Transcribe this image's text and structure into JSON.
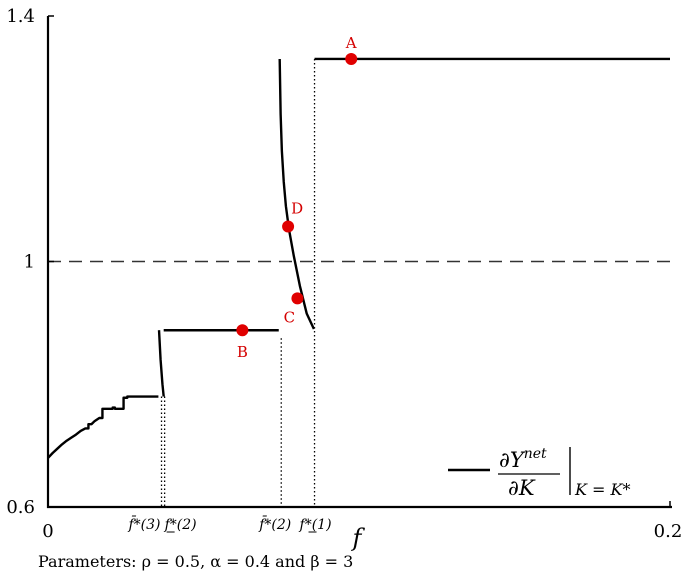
{
  "chart_data": {
    "type": "line",
    "title": "",
    "xlabel": "f",
    "ylabel": "",
    "xlim": [
      0,
      0.2
    ],
    "ylim": [
      0.6,
      1.4
    ],
    "x_ticks": [
      {
        "value": 0,
        "label": "0"
      },
      {
        "value": 0.2,
        "label": "0.2"
      }
    ],
    "y_ticks": [
      {
        "value": 0.6,
        "label": "0.6"
      },
      {
        "value": 1.0,
        "label": "1"
      },
      {
        "value": 1.4,
        "label": "1.4"
      }
    ],
    "x_markers": [
      {
        "value": 0.0365,
        "label": "f̄*(3)",
        "line_top": 0.78
      },
      {
        "value": 0.0375,
        "label": "f*(2)",
        "underline": true,
        "line_top": 0.78
      },
      {
        "value": 0.075,
        "label": "f̄*(2)",
        "line_top": 0.875
      },
      {
        "value": 0.0857,
        "label": "f*(1)",
        "underline": true,
        "line_top": 1.33
      }
    ],
    "reference_line": {
      "y": 1.0,
      "style": "dashed"
    },
    "series": [
      {
        "name": "",
        "segments": [
          [
            [
              0,
              0.68
            ],
            [
              0.0015,
              0.688
            ],
            [
              0.003,
              0.695
            ],
            [
              0.0045,
              0.702
            ],
            [
              0.006,
              0.708
            ],
            [
              0.0075,
              0.713
            ],
            [
              0.009,
              0.718
            ],
            [
              0.0105,
              0.724
            ],
            [
              0.012,
              0.728
            ],
            [
              0.013,
              0.728
            ],
            [
              0.013,
              0.735
            ],
            [
              0.014,
              0.735
            ],
            [
              0.015,
              0.74
            ],
            [
              0.0165,
              0.745
            ],
            [
              0.0175,
              0.745
            ],
            [
              0.0175,
              0.76
            ],
            [
              0.0208,
              0.76
            ],
            [
              0.0208,
              0.762
            ],
            [
              0.0215,
              0.762
            ],
            [
              0.0215,
              0.76
            ],
            [
              0.0243,
              0.76
            ],
            [
              0.0243,
              0.778
            ],
            [
              0.0255,
              0.778
            ],
            [
              0.0255,
              0.78
            ],
            [
              0.0355,
              0.78
            ]
          ],
          [
            [
              0.0357,
              0.888
            ],
            [
              0.0362,
              0.84
            ],
            [
              0.0368,
              0.8
            ],
            [
              0.0372,
              0.78
            ]
          ],
          [
            [
              0.0372,
              0.888
            ],
            [
              0.0742,
              0.888
            ]
          ],
          [
            [
              0.0745,
              1.33
            ],
            [
              0.0748,
              1.24
            ],
            [
              0.0752,
              1.18
            ],
            [
              0.0758,
              1.13
            ],
            [
              0.0765,
              1.09
            ],
            [
              0.0775,
              1.052
            ],
            [
              0.079,
              1.01
            ],
            [
              0.081,
              0.96
            ],
            [
              0.0832,
              0.915
            ],
            [
              0.0855,
              0.89
            ]
          ],
          [
            [
              0.0857,
              1.33
            ],
            [
              0.2,
              1.33
            ]
          ]
        ]
      }
    ],
    "points": [
      {
        "label": "A",
        "x": 0.0975,
        "y": 1.33,
        "label_side": "above"
      },
      {
        "label": "B",
        "x": 0.0625,
        "y": 0.888,
        "label_side": "below"
      },
      {
        "label": "C",
        "x": 0.0802,
        "y": 0.94,
        "label_side": "below-left"
      },
      {
        "label": "D",
        "x": 0.0772,
        "y": 1.057,
        "label_side": "above-right"
      }
    ],
    "legend": {
      "position": "bottom-right",
      "entry": "∂Y^net / ∂K |_(K = K*)"
    },
    "colors": {
      "series": "#000000",
      "points": "#e00000",
      "point_labels": "#d40000",
      "reference": "#333333"
    }
  },
  "legend_parts": {
    "numerator": "∂Y",
    "numerator_sup": "net",
    "denominator": "∂K",
    "evaluated_at": "K = K*"
  },
  "caption": "Parameters: ρ = 0.5, α = 0.4 and β = 3"
}
